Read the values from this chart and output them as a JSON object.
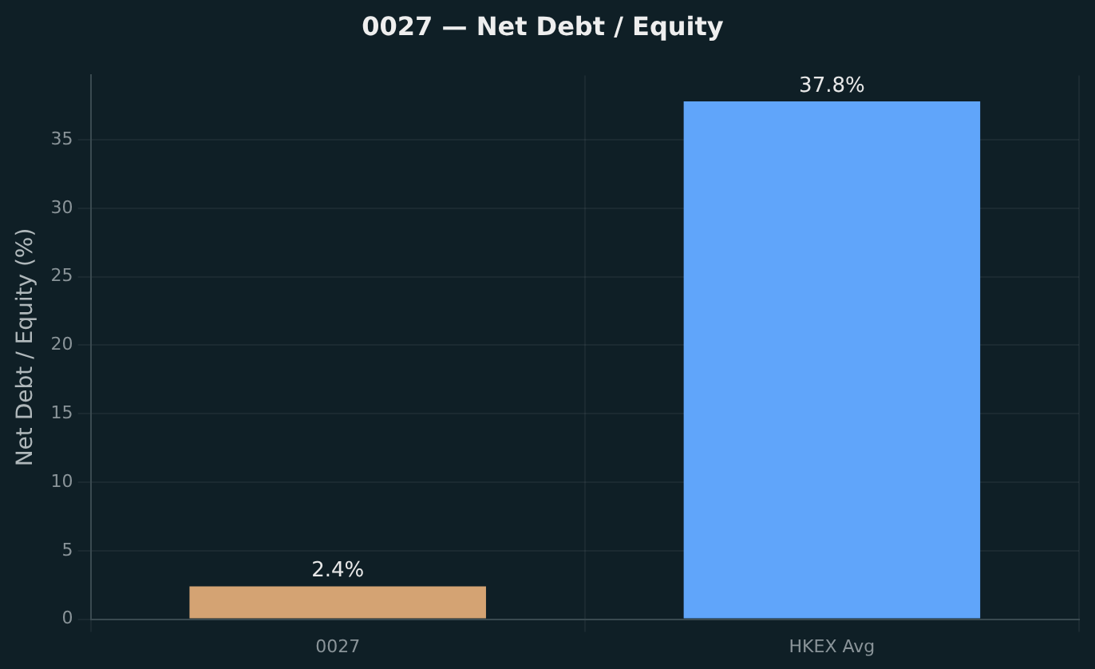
{
  "chart_data": {
    "type": "bar",
    "title": "0027 — Net Debt / Equity",
    "ylabel": "Net Debt / Equity (%)",
    "categories": [
      "0027",
      "HKEX Avg"
    ],
    "values": [
      2.4,
      37.8
    ],
    "colors": [
      "#d4a373",
      "#60a5fa"
    ],
    "value_labels": [
      "2.4%",
      "37.8%"
    ],
    "ylim": [
      0,
      39.7
    ],
    "yticks": [
      0,
      5,
      10,
      15,
      20,
      25,
      30,
      35
    ],
    "grid": true,
    "legend": false
  }
}
